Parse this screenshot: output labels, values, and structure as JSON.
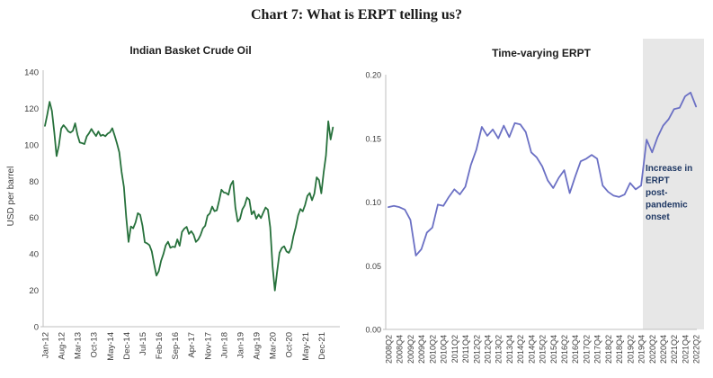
{
  "page": {
    "title": "Chart 7: What is ERPT telling us?"
  },
  "colors": {
    "oil_line": "#27713c",
    "erpt_line": "#6b70c4",
    "annotation_text": "#1f3864",
    "shade": "#e7e7e7",
    "axis": "#bfbfbf",
    "tick_label": "#3d3d3d",
    "title": "#1a1a1a"
  },
  "chart_data": [
    {
      "type": "line",
      "title": "Indian Basket Crude Oil",
      "ylabel": "USD per barrel",
      "x_start": "Jan-12",
      "ylim": [
        0,
        140
      ],
      "yticks": [
        "0",
        "20",
        "40",
        "60",
        "80",
        "100",
        "120",
        "140"
      ],
      "xtick_step": 7,
      "xticks": [
        "Jan-12",
        "Aug-12",
        "Mar-13",
        "Oct-13",
        "May-14",
        "Dec-14",
        "Jul-15",
        "Feb-16",
        "Sep-16",
        "Apr-17",
        "Nov-17",
        "Jun-18",
        "Jan-19",
        "Aug-19",
        "Mar-20",
        "Oct-20",
        "May-21",
        "Dec-21"
      ],
      "line_color": "#27713c",
      "values": [
        110.4,
        116.6,
        123.6,
        118.6,
        107.1,
        93.8,
        99.6,
        108.9,
        110.8,
        109.3,
        107.4,
        106.7,
        107.7,
        111.8,
        105.5,
        101.2,
        100.9,
        100.4,
        104.6,
        106.4,
        108.7,
        106.6,
        104.8,
        107.3,
        104.9,
        105.5,
        104.7,
        106.1,
        106.9,
        109.1,
        105.1,
        100.8,
        95.9,
        85.1,
        76.8,
        60.0,
        46.6,
        55.1,
        54.1,
        57.3,
        62.4,
        61.5,
        55.5,
        46.4,
        45.8,
        44.8,
        41.4,
        34.4,
        28.1,
        30.5,
        36.2,
        39.9,
        44.7,
        46.7,
        43.4,
        44.0,
        43.7,
        48.0,
        44.5,
        52.1,
        53.9,
        54.9,
        51.0,
        52.5,
        50.6,
        46.6,
        47.9,
        50.4,
        54.0,
        55.5,
        61.0,
        62.3,
        66.0,
        63.5,
        64.0,
        69.3,
        75.3,
        73.8,
        73.5,
        72.5,
        77.9,
        80.1,
        65.4,
        57.8,
        59.3,
        64.5,
        66.7,
        71.0,
        69.8,
        61.8,
        63.6,
        59.3,
        61.7,
        59.7,
        62.7,
        65.5,
        64.3,
        54.6,
        33.4,
        19.9,
        30.6,
        40.6,
        43.3,
        44.2,
        41.4,
        40.6,
        43.3,
        49.8,
        54.8,
        61.2,
        64.7,
        63.4,
        66.9,
        71.9,
        73.5,
        69.5,
        73.1,
        82.1,
        80.6,
        73.3,
        84.7,
        94.1,
        112.9,
        102.9,
        109.5
      ]
    },
    {
      "type": "line",
      "title": "Time-varying ERPT",
      "ylabel": "",
      "x_start": "2008Q2",
      "ylim": [
        0,
        0.2
      ],
      "yticks": [
        "0.00",
        "0.05",
        "0.10",
        "0.15",
        "0.20"
      ],
      "xtick_step": 2,
      "xticks": [
        "2008Q2",
        "2008Q4",
        "2009Q2",
        "2009Q4",
        "2010Q2",
        "2010Q4",
        "2011Q2",
        "2011Q4",
        "2012Q2",
        "2012Q4",
        "2013Q2",
        "2013Q4",
        "2014Q2",
        "2014Q4",
        "2015Q2",
        "2015Q4",
        "2016Q2",
        "2016Q4",
        "2017Q2",
        "2017Q4",
        "2018Q2",
        "2018Q4",
        "2019Q2",
        "2019Q4",
        "2020Q2",
        "2020Q4",
        "2021Q2",
        "2021Q4",
        "2022Q2"
      ],
      "line_color": "#6b70c4",
      "values": [
        0.096,
        0.097,
        0.096,
        0.094,
        0.086,
        0.058,
        0.063,
        0.076,
        0.08,
        0.098,
        0.097,
        0.104,
        0.11,
        0.106,
        0.112,
        0.129,
        0.141,
        0.159,
        0.152,
        0.157,
        0.15,
        0.16,
        0.151,
        0.162,
        0.161,
        0.155,
        0.139,
        0.135,
        0.128,
        0.117,
        0.111,
        0.119,
        0.125,
        0.107,
        0.12,
        0.132,
        0.134,
        0.137,
        0.134,
        0.113,
        0.108,
        0.105,
        0.104,
        0.106,
        0.115,
        0.11,
        0.113,
        0.149,
        0.139,
        0.151,
        0.16,
        0.165,
        0.173,
        0.174,
        0.183,
        0.186,
        0.175
      ],
      "shade_region": {
        "from": "2020Q1",
        "to": "2022Q2",
        "color": "#e7e7e7"
      },
      "annotation": {
        "text": "Increase in ERPT post-pandemic onset",
        "lines": [
          "Increase in",
          "ERPT",
          "post-",
          "pandemic",
          "onset"
        ],
        "color": "#1f3864"
      }
    }
  ]
}
